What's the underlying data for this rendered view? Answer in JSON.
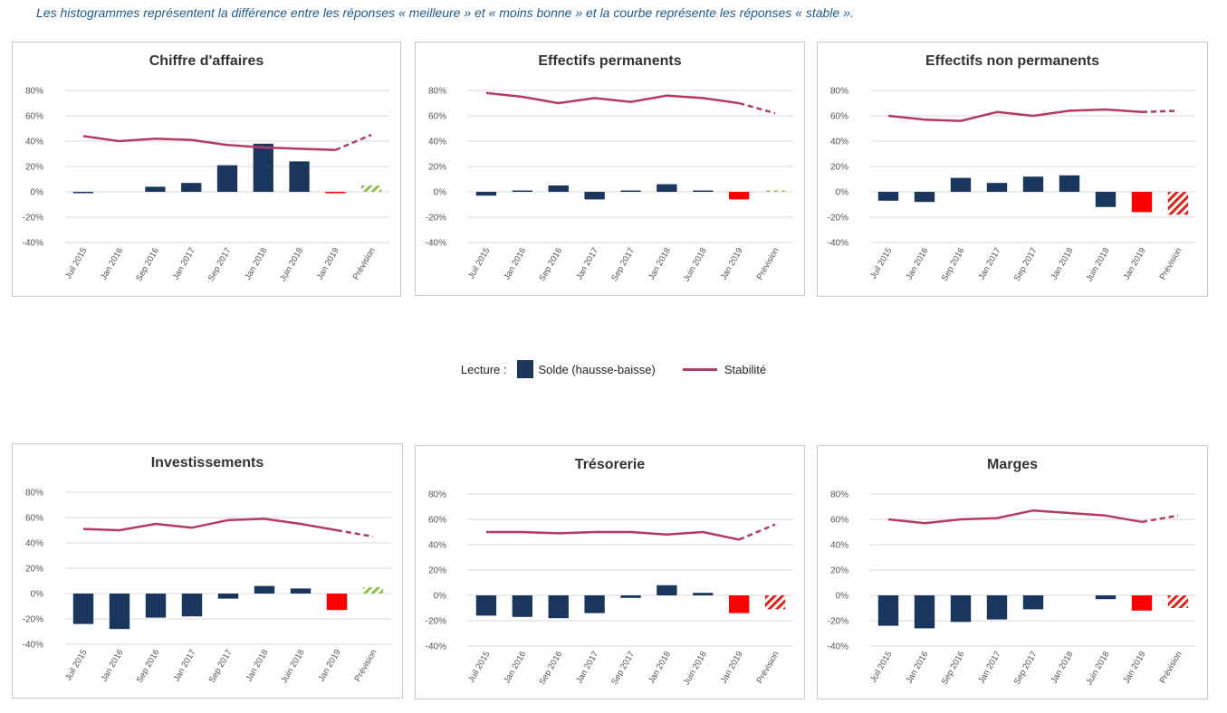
{
  "caption": "Les histogrammes représentent la différence entre les réponses « meilleure » et « moins bonne » et la courbe représente les réponses « stable ».",
  "legend": {
    "reading_label": "Lecture :",
    "bar_label": "Solde (hausse-baisse)",
    "line_label": "Stabilité"
  },
  "colors": {
    "bar": "#1b365d",
    "line": "#b5396b",
    "negative_highlight": "#ff0000",
    "forecast_positive": "#8dc34a",
    "forecast_negative": "#e0201b",
    "grid": "#d9d9d9"
  },
  "chart_data": [
    {
      "type": "bar",
      "title": "Chiffre d'affaires",
      "categories": [
        "Juil 2015",
        "Jan 2016",
        "Sep 2016",
        "Jan 2017",
        "Sep 2017",
        "Jan 2018",
        "Juin 2018",
        "Jan 2019",
        "Prévision"
      ],
      "yticks": [
        "80%",
        "60%",
        "40%",
        "20%",
        "0%",
        "-20%",
        "-40%"
      ],
      "ylim": [
        -40,
        80
      ],
      "series": [
        {
          "values": [
            -1,
            0,
            4,
            7,
            21,
            38,
            24,
            -1,
            5
          ]
        },
        {
          "values": [
            44,
            40,
            42,
            41,
            37,
            35,
            34,
            33,
            45
          ]
        }
      ]
    },
    {
      "type": "bar",
      "title": "Effectifs permanents",
      "categories": [
        "Juil 2015",
        "Jan 2016",
        "Sep 2016",
        "Jan 2017",
        "Sep 2017",
        "Jan 2018",
        "Juin 2018",
        "Jan 2019",
        "Prévision"
      ],
      "yticks": [
        "80%",
        "60%",
        "40%",
        "20%",
        "0%",
        "-20%",
        "-40%"
      ],
      "ylim": [
        -40,
        80
      ],
      "series": [
        {
          "values": [
            -3,
            1,
            5,
            -6,
            1,
            6,
            1,
            -6,
            1
          ]
        },
        {
          "values": [
            78,
            75,
            70,
            74,
            71,
            76,
            74,
            70,
            62
          ]
        }
      ]
    },
    {
      "type": "bar",
      "title": "Effectifs non permanents",
      "categories": [
        "Juil 2015",
        "Jan 2016",
        "Sep 2016",
        "Jan 2017",
        "Sep 2017",
        "Jan 2018",
        "Juin 2018",
        "Jan 2019",
        "Prévision"
      ],
      "yticks": [
        "80%",
        "60%",
        "40%",
        "20%",
        "0%",
        "-20%",
        "-40%"
      ],
      "ylim": [
        -40,
        80
      ],
      "series": [
        {
          "values": [
            -7,
            -8,
            11,
            7,
            12,
            13,
            -12,
            -16,
            -18
          ]
        },
        {
          "values": [
            60,
            57,
            56,
            63,
            60,
            64,
            65,
            63,
            64
          ]
        }
      ]
    },
    {
      "type": "bar",
      "title": "Investissements",
      "categories": [
        "Juil 2015",
        "Jan 2016",
        "Sep 2016",
        "Jan 2017",
        "Sep 2017",
        "Jan 2018",
        "Juin 2018",
        "Jan 2019",
        "Prévision"
      ],
      "yticks": [
        "80%",
        "60%",
        "40%",
        "20%",
        "0%",
        "-20%",
        "-40%"
      ],
      "ylim": [
        -40,
        80
      ],
      "series": [
        {
          "values": [
            -24,
            -28,
            -19,
            -18,
            -4,
            6,
            4,
            -13,
            5
          ]
        },
        {
          "values": [
            51,
            50,
            55,
            52,
            58,
            59,
            55,
            50,
            45
          ]
        }
      ]
    },
    {
      "type": "bar",
      "title": "Trésorerie",
      "categories": [
        "Juil 2015",
        "Jan 2016",
        "Sep 2016",
        "Jan 2017",
        "Sep 2017",
        "Jan 2018",
        "Juin 2018",
        "Jan 2019",
        "Prévision"
      ],
      "yticks": [
        "80%",
        "60%",
        "40%",
        "20%",
        "0%",
        "-20%",
        "-40%"
      ],
      "ylim": [
        -40,
        80
      ],
      "series": [
        {
          "values": [
            -16,
            -17,
            -18,
            -14,
            -2,
            8,
            2,
            -14,
            -11
          ]
        },
        {
          "values": [
            50,
            50,
            49,
            50,
            50,
            48,
            50,
            44,
            56
          ]
        }
      ]
    },
    {
      "type": "bar",
      "title": "Marges",
      "categories": [
        "Juil 2015",
        "Jan 2016",
        "Sep 2016",
        "Jan 2017",
        "Sep 2017",
        "Jan 2018",
        "Juin 2018",
        "Jan 2019",
        "Prévision"
      ],
      "yticks": [
        "80%",
        "60%",
        "40%",
        "20%",
        "0%",
        "-20%",
        "-40%"
      ],
      "ylim": [
        -40,
        80
      ],
      "series": [
        {
          "values": [
            -24,
            -26,
            -21,
            -19,
            -11,
            0,
            -3,
            -12,
            -10
          ]
        },
        {
          "values": [
            60,
            57,
            60,
            61,
            67,
            65,
            63,
            58,
            63
          ]
        }
      ]
    }
  ]
}
